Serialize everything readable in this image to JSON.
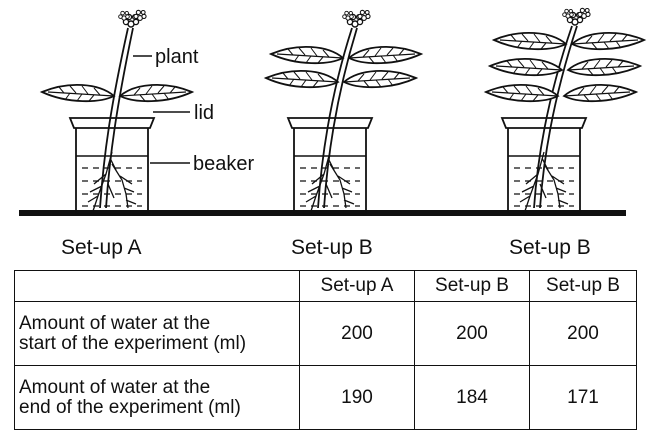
{
  "diagram": {
    "callouts": {
      "plant": "plant",
      "lid": "lid",
      "beaker": "beaker"
    },
    "setups": [
      {
        "label": "Set-up A",
        "leaf_pairs": 1
      },
      {
        "label": "Set-up B",
        "leaf_pairs": 2
      },
      {
        "label": "Set-up B",
        "leaf_pairs": 3
      }
    ]
  },
  "table": {
    "headers": [
      "",
      "Set-up A",
      "Set-up B",
      "Set-up B"
    ],
    "rows": [
      {
        "label_line1": "Amount of water at the",
        "label_line2": "start of the experiment (ml)",
        "values": [
          "200",
          "200",
          "200"
        ]
      },
      {
        "label_line1": "Amount of water at the",
        "label_line2": "end of the experiment (ml)",
        "values": [
          "190",
          "184",
          "171"
        ]
      }
    ]
  }
}
